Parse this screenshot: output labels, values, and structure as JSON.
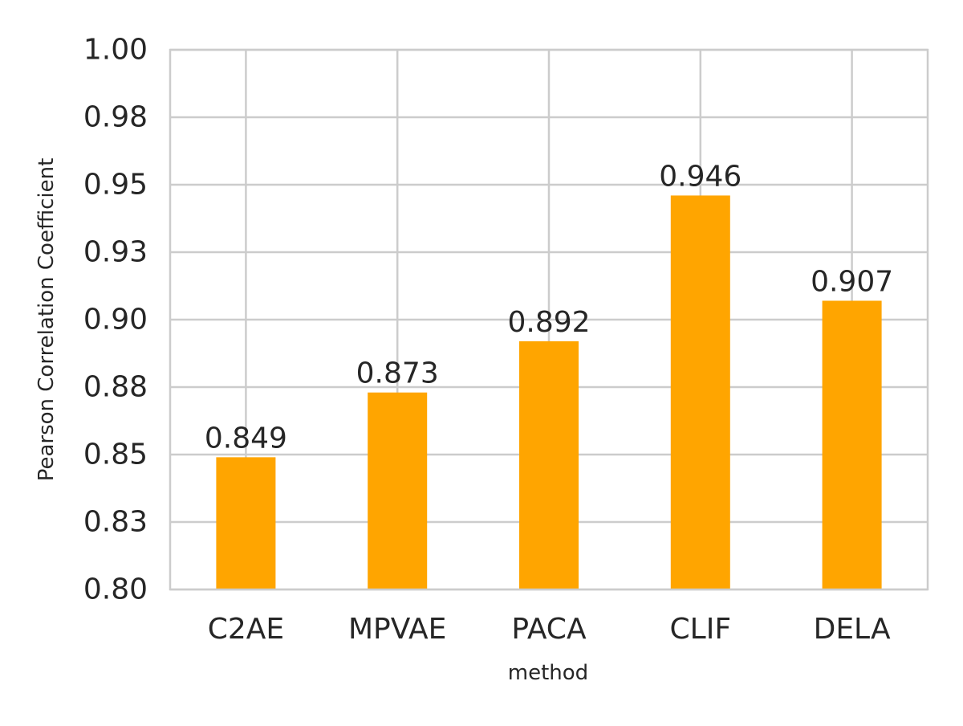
{
  "chart_data": {
    "type": "bar",
    "categories": [
      "C2AE",
      "MPVAE",
      "PACA",
      "CLIF",
      "DELA"
    ],
    "values": [
      0.849,
      0.873,
      0.892,
      0.946,
      0.907
    ],
    "value_labels": [
      "0.849",
      "0.873",
      "0.892",
      "0.946",
      "0.907"
    ],
    "xlabel": "method",
    "ylabel": "Pearson Correlation Coefficient",
    "ylim": [
      0.8,
      1.0
    ],
    "y_ticks": [
      0.8,
      0.825,
      0.85,
      0.875,
      0.9,
      0.925,
      0.95,
      0.975,
      1.0
    ],
    "y_tick_labels": [
      "0.80",
      "0.83",
      "0.85",
      "0.88",
      "0.90",
      "0.93",
      "0.95",
      "0.98",
      "1.00"
    ],
    "grid": true,
    "bar_color": "#FFA500",
    "grid_color": "#CCCCCC"
  }
}
